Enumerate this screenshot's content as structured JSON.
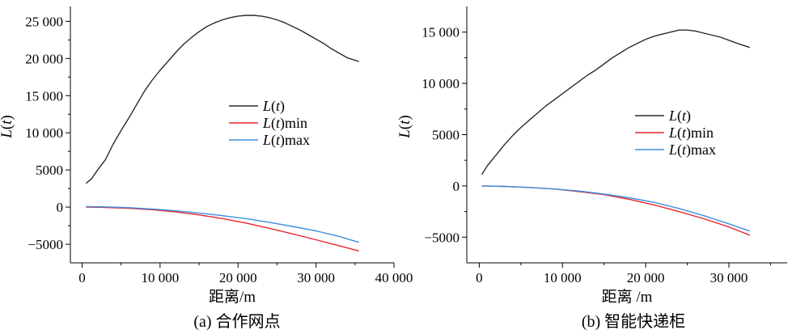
{
  "chart_data": [
    {
      "type": "line",
      "caption": "(a) 合作网点",
      "xlabel": "距离/m",
      "ylabel": "L(t)",
      "xlim": [
        -1500,
        40000
      ],
      "ylim": [
        -7500,
        27000
      ],
      "xticks": [
        0,
        10000,
        20000,
        30000,
        40000
      ],
      "xtick_labels": [
        "0",
        "10 000",
        "20 000",
        "30 000",
        "40 000"
      ],
      "yticks": [
        -5000,
        0,
        5000,
        10000,
        15000,
        20000,
        25000
      ],
      "ytick_labels": [
        "−5000",
        "0",
        "5000",
        "10 000",
        "15 000",
        "20 000",
        "25 000"
      ],
      "legend_position": "center-right",
      "series": [
        {
          "name": "L(t)",
          "color": "#2b2b2b",
          "x": [
            500,
            1200,
            2000,
            3000,
            4000,
            5000,
            6000,
            7000,
            8000,
            9000,
            10000,
            11000,
            12000,
            13000,
            14000,
            15000,
            16000,
            17000,
            18000,
            19000,
            20000,
            21000,
            22000,
            23000,
            24000,
            25000,
            26000,
            27000,
            28000,
            29000,
            30000,
            31000,
            32000,
            33000,
            34000,
            35500
          ],
          "y": [
            3200,
            3800,
            5000,
            6400,
            8500,
            10300,
            12000,
            13800,
            15600,
            17100,
            18400,
            19600,
            20800,
            21900,
            22800,
            23600,
            24300,
            24800,
            25200,
            25500,
            25700,
            25800,
            25800,
            25700,
            25500,
            25200,
            24800,
            24300,
            23800,
            23200,
            22600,
            22000,
            21300,
            20700,
            20100,
            19600
          ]
        },
        {
          "name": "L(t)min",
          "color": "#e8262e",
          "x": [
            500,
            3000,
            6000,
            9000,
            12000,
            15000,
            18000,
            21000,
            24000,
            27000,
            30000,
            33000,
            35500
          ],
          "y": [
            0,
            -50,
            -150,
            -350,
            -650,
            -1050,
            -1550,
            -2150,
            -2850,
            -3600,
            -4400,
            -5200,
            -5900
          ]
        },
        {
          "name": "L(t)max",
          "color": "#3d8ee0",
          "x": [
            500,
            3000,
            6000,
            9000,
            12000,
            15000,
            18000,
            21000,
            24000,
            27000,
            30000,
            33000,
            35500
          ],
          "y": [
            80,
            30,
            -80,
            -250,
            -500,
            -800,
            -1150,
            -1550,
            -2050,
            -2600,
            -3200,
            -3950,
            -4750
          ]
        }
      ]
    },
    {
      "type": "line",
      "caption": "(b) 智能快递柜",
      "xlabel": "距离 /m",
      "ylabel": "L(t)",
      "xlim": [
        -1500,
        37000
      ],
      "ylim": [
        -7500,
        17500
      ],
      "xticks": [
        0,
        10000,
        20000,
        30000
      ],
      "xtick_labels": [
        "0",
        "10 000",
        "20 000",
        "30 000"
      ],
      "yticks": [
        -5000,
        0,
        5000,
        10000,
        15000
      ],
      "ytick_labels": [
        "−5000",
        "0",
        "5000",
        "10 000",
        "15 000"
      ],
      "legend_position": "center-right",
      "series": [
        {
          "name": "L(t)",
          "color": "#2b2b2b",
          "x": [
            300,
            1000,
            2000,
            3000,
            4000,
            5000,
            6000,
            7000,
            8000,
            9000,
            10000,
            11000,
            12000,
            13000,
            14000,
            15000,
            16000,
            17000,
            18000,
            19000,
            20000,
            21000,
            22000,
            23000,
            24000,
            25000,
            26000,
            27000,
            28000,
            29000,
            30000,
            31000,
            32500
          ],
          "y": [
            1100,
            2000,
            3000,
            4000,
            4900,
            5700,
            6400,
            7100,
            7800,
            8400,
            9000,
            9600,
            10200,
            10800,
            11300,
            11900,
            12500,
            13000,
            13500,
            13900,
            14300,
            14600,
            14800,
            15000,
            15200,
            15200,
            15100,
            14900,
            14700,
            14500,
            14200,
            13900,
            13500
          ]
        },
        {
          "name": "L(t)min",
          "color": "#e8262e",
          "x": [
            300,
            3000,
            6000,
            9000,
            12000,
            15000,
            18000,
            21000,
            24000,
            27000,
            30000,
            32500
          ],
          "y": [
            0,
            -50,
            -150,
            -300,
            -550,
            -850,
            -1300,
            -1850,
            -2500,
            -3200,
            -4000,
            -4800
          ]
        },
        {
          "name": "L(t)max",
          "color": "#3d8ee0",
          "x": [
            300,
            3000,
            6000,
            9000,
            12000,
            15000,
            18000,
            21000,
            24000,
            27000,
            30000,
            32500
          ],
          "y": [
            0,
            -50,
            -150,
            -300,
            -500,
            -800,
            -1150,
            -1600,
            -2200,
            -2900,
            -3700,
            -4400
          ]
        }
      ]
    }
  ]
}
